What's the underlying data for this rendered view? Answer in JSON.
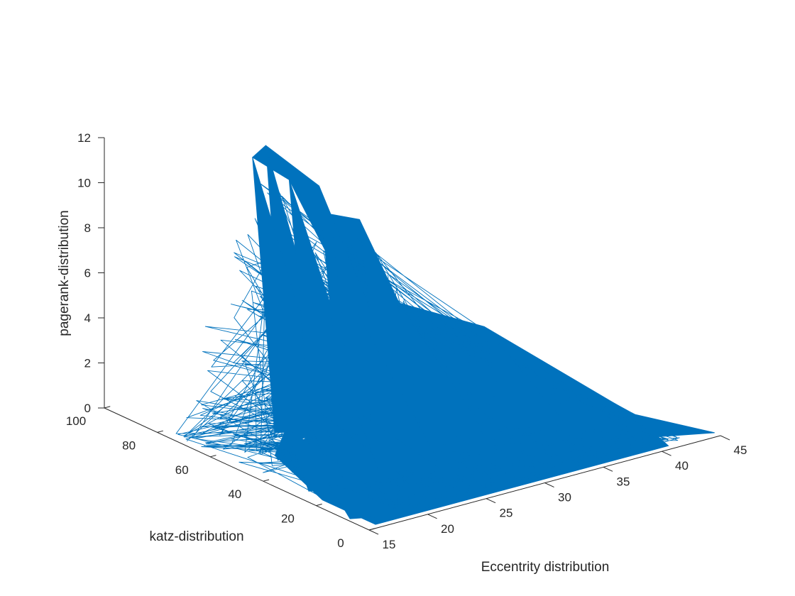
{
  "chart_data": {
    "type": "line",
    "view": "3d",
    "xlabel": "Eccentrity distribution",
    "ylabel": "katz-distribution",
    "zlabel": "pagerank-distribution",
    "xlim": [
      15,
      45
    ],
    "ylim": [
      0,
      100
    ],
    "zlim": [
      0,
      12
    ],
    "x_ticks": [
      "15",
      "20",
      "25",
      "30",
      "35",
      "40",
      "45"
    ],
    "y_ticks": [
      "0",
      "20",
      "40",
      "60",
      "80",
      "100"
    ],
    "z_ticks": [
      "0",
      "2",
      "4",
      "6",
      "8",
      "10",
      "12"
    ],
    "grid": false,
    "series": [
      {
        "color": "#0072BD",
        "peaks": [
          {
            "x": 22,
            "y": 70,
            "z": 12.3
          },
          {
            "x": 22,
            "y": 75,
            "z": 11.5
          },
          {
            "x": 24,
            "y": 70,
            "z": 10.5
          },
          {
            "x": 27,
            "y": 72,
            "z": 9.7
          },
          {
            "x": 28,
            "y": 72,
            "z": 8.3
          },
          {
            "x": 30,
            "y": 70,
            "z": 7.9
          },
          {
            "x": 24,
            "y": 45,
            "z": 6.1
          },
          {
            "x": 30,
            "y": 55,
            "z": 5.0
          },
          {
            "x": 35,
            "y": 45,
            "z": 3.8
          },
          {
            "x": 19,
            "y": 40,
            "z": 2.2
          },
          {
            "x": 17,
            "y": 40,
            "z": 2.1
          },
          {
            "x": 20,
            "y": 40,
            "z": 2.3
          },
          {
            "x": 23,
            "y": 40,
            "z": 2.0
          },
          {
            "x": 16,
            "y": 20,
            "z": 0.9
          },
          {
            "x": 42,
            "y": 20,
            "z": 0.3
          }
        ]
      }
    ]
  }
}
